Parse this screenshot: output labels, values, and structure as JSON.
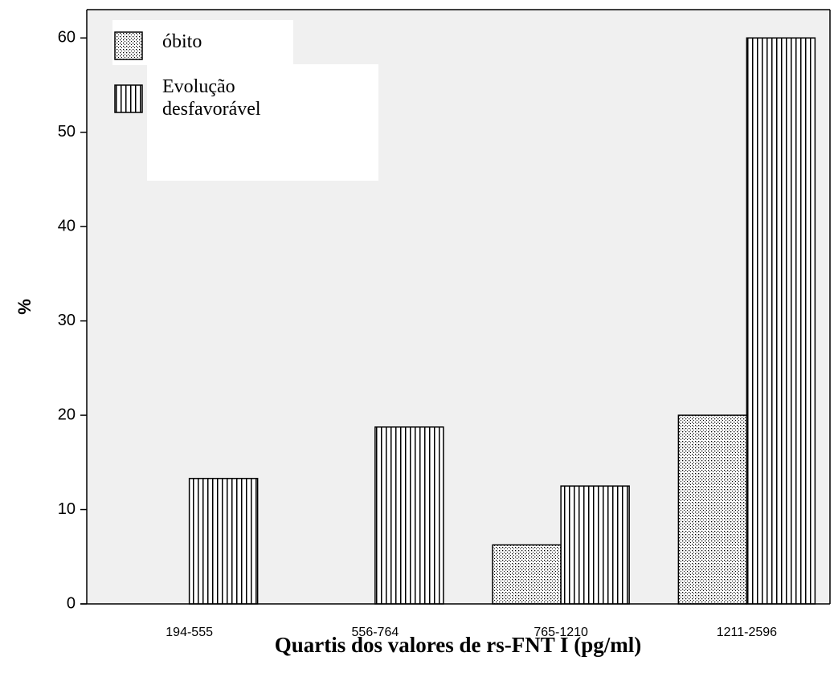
{
  "chart_data": {
    "type": "bar",
    "x_label": "Quartis dos valores de rs-FNT I (pg/ml)",
    "y_label": "%",
    "categories": [
      "194-555",
      "556-764",
      "765-1210",
      "1211-2596"
    ],
    "series": [
      {
        "name": "óbito",
        "color": "#000000",
        "pattern": "dots",
        "values": [
          0,
          0,
          6.25,
          20
        ]
      },
      {
        "name": "Evolução desfavorável",
        "color": "#000000",
        "pattern": "vertical-lines",
        "values": [
          13.3,
          18.75,
          12.5,
          60
        ]
      }
    ],
    "ylim": [
      0,
      63
    ],
    "yticks": [
      0,
      10,
      20,
      30,
      40,
      50,
      60
    ],
    "legend": "upper-left"
  }
}
